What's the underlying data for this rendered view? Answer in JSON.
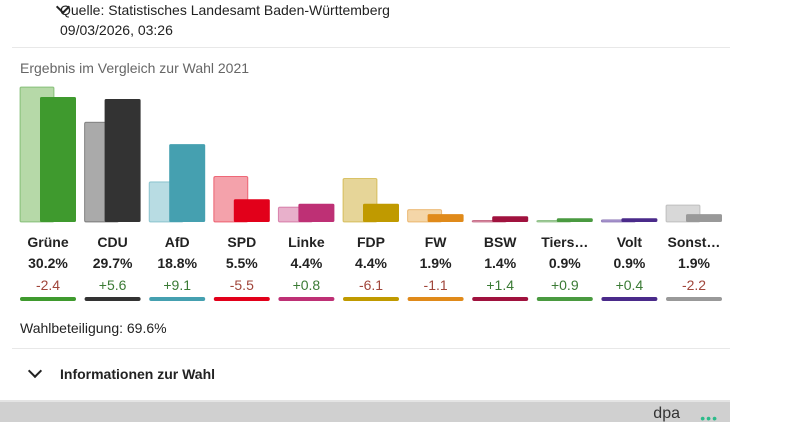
{
  "source": {
    "title": "Quelle: Statistisches Landesamt Baden-Württemberg",
    "timestamp": "09/03/2026, 03:26"
  },
  "chart_data": {
    "type": "bar",
    "title": "Ergebnis im Vergleich zur Wahl 2021",
    "categories": [
      "Grüne",
      "CDU",
      "AfD",
      "SPD",
      "Linke",
      "FDP",
      "FW",
      "BSW",
      "Tiers…",
      "Volt",
      "Sonst…"
    ],
    "series": [
      {
        "values": [
          32.6,
          24.1,
          9.7,
          11.0,
          3.6,
          10.5,
          3.0,
          0.0,
          0.0,
          0.5,
          4.1
        ]
      },
      {
        "values": [
          30.2,
          29.7,
          18.8,
          5.5,
          4.4,
          4.4,
          1.9,
          1.4,
          0.9,
          0.9,
          1.9
        ]
      }
    ],
    "value_labels": [
      "30.2%",
      "29.7%",
      "18.8%",
      "5.5%",
      "4.4%",
      "4.4%",
      "1.9%",
      "1.4%",
      "0.9%",
      "0.9%",
      "1.9%"
    ],
    "diff_labels": [
      "-2.4",
      "+5.6",
      "+9.1",
      "-5.5",
      "+0.8",
      "-6.1",
      "-1.1",
      "+1.4",
      "+0.9",
      "+0.4",
      "-2.2"
    ],
    "colors": [
      "#3f9a2e",
      "#333333",
      "#45a0b0",
      "#e2001a",
      "#be3075",
      "#c09a00",
      "#e08a1a",
      "#a0123e",
      "#4a9a40",
      "#4a2a8a",
      "#999999"
    ],
    "light_colors": [
      "#b6d9a8",
      "#aaaaaa",
      "#b8dce3",
      "#f4a2ab",
      "#e8b0cb",
      "#e6d598",
      "#f4d6a8",
      "#e2a8b8",
      "#b8d8b0",
      "#b8a8d8",
      "#d8d8d8"
    ],
    "ylim": [
      0,
      33
    ]
  },
  "turnout": "Wahlbeteiligung: 69.6%",
  "info_label": "Informationen zur Wahl",
  "footer": {
    "brand": "dpa",
    "dots": "•••"
  }
}
